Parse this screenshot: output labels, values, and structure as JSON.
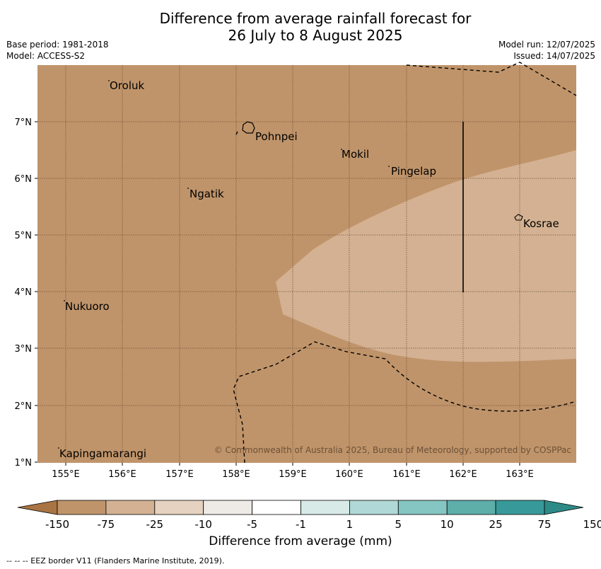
{
  "header": {
    "title_line1": "Difference from average rainfall forecast for",
    "title_line2": "26 July to 8 August 2025",
    "base_period": "Base period: 1981-2018",
    "model": "Model: ACCESS-S2",
    "model_run": "Model run: 12/07/2025",
    "issued": "Issued: 14/07/2025"
  },
  "map": {
    "lon_labels": [
      "155°E",
      "156°E",
      "157°E",
      "158°E",
      "159°E",
      "160°E",
      "161°E",
      "162°E",
      "163°E"
    ],
    "lat_labels": [
      "7°N",
      "6°N",
      "5°N",
      "4°N",
      "3°N",
      "2°N",
      "1°N"
    ],
    "places": {
      "oroluk": "Oroluk",
      "pohnpei": "Pohnpei",
      "mokil": "Mokil",
      "pingelap": "Pingelap",
      "ngatik": "Ngatik",
      "kosrae": "Kosrae",
      "nukuoro": "Nukuoro",
      "kapingamarangi": "Kapingamarangi"
    },
    "copyright": "© Commonwealth of Australia 2025, Bureau of Meteorology, supported by COSPPac",
    "background_category_color": "#c0946a",
    "light_category_color": "#d3b192"
  },
  "colorbar": {
    "title": "Difference from average (mm)",
    "ticks": [
      "-150",
      "-75",
      "-25",
      "-10",
      "-5",
      "-1",
      "1",
      "5",
      "10",
      "25",
      "75",
      "150"
    ],
    "colors": [
      "#a97443",
      "#c0946a",
      "#d3b192",
      "#e6d2c0",
      "#eeeae6",
      "#ffffff",
      "#d7eae8",
      "#b0d8d6",
      "#85c5c2",
      "#5eaeaa",
      "#38999a",
      "#2d8a87"
    ]
  },
  "footer": {
    "legend": "--  --  -- EEZ border V11 (Flanders Marine Institute, 2019)."
  }
}
